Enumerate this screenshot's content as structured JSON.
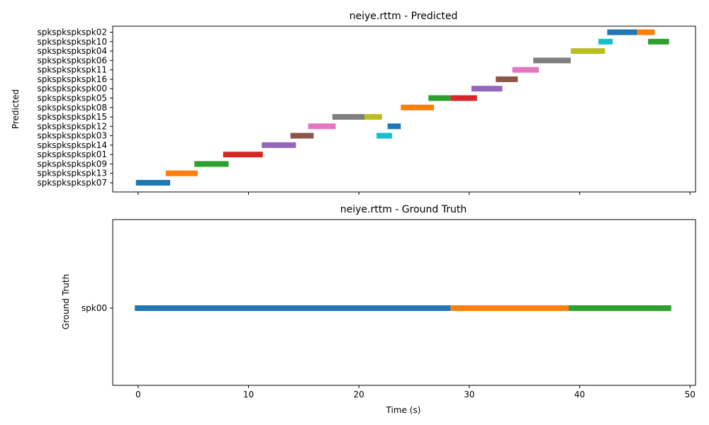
{
  "chart_data": [
    {
      "type": "timeline",
      "title": "neiye.rttm - Predicted",
      "xlabel": "",
      "ylabel": "Predicted",
      "xlim": [
        -2.3,
        50.5
      ],
      "grid": false,
      "speakers": [
        "spkspkspkspk07",
        "spkspkspkspk13",
        "spkspkspkspk09",
        "spkspkspkspk01",
        "spkspkspkspk14",
        "spkspkspkspk03",
        "spkspkspkspk12",
        "spkspkspkspk15",
        "spkspkspkspk08",
        "spkspkspkspk05",
        "spkspkspkspk00",
        "spkspkspkspk16",
        "spkspkspkspk11",
        "spkspkspkspk06",
        "spkspkspkspk04",
        "spkspkspkspk10",
        "spkspkspkspk02"
      ],
      "segments": [
        {
          "speaker": "spkspkspkspk07",
          "start": -0.2,
          "end": 2.9,
          "color": "#1f77b4"
        },
        {
          "speaker": "spkspkspkspk13",
          "start": 2.5,
          "end": 5.4,
          "color": "#ff7f0e"
        },
        {
          "speaker": "spkspkspkspk09",
          "start": 5.1,
          "end": 8.2,
          "color": "#2ca02c"
        },
        {
          "speaker": "spkspkspkspk01",
          "start": 7.7,
          "end": 11.3,
          "color": "#d62728"
        },
        {
          "speaker": "spkspkspkspk14",
          "start": 11.2,
          "end": 14.3,
          "color": "#9467bd"
        },
        {
          "speaker": "spkspkspkspk03",
          "start": 13.8,
          "end": 15.9,
          "color": "#8c564b"
        },
        {
          "speaker": "spkspkspkspk12",
          "start": 15.4,
          "end": 17.9,
          "color": "#e377c2"
        },
        {
          "speaker": "spkspkspkspk15",
          "start": 17.6,
          "end": 20.5,
          "color": "#7f7f7f"
        },
        {
          "speaker": "spkspkspkspk15",
          "start": 20.5,
          "end": 22.1,
          "color": "#bcbd22"
        },
        {
          "speaker": "spkspkspkspk03",
          "start": 21.6,
          "end": 23.0,
          "color": "#17becf"
        },
        {
          "speaker": "spkspkspkspk12",
          "start": 22.6,
          "end": 23.8,
          "color": "#1f77b4"
        },
        {
          "speaker": "spkspkspkspk08",
          "start": 23.8,
          "end": 26.8,
          "color": "#ff7f0e"
        },
        {
          "speaker": "spkspkspkspk05",
          "start": 26.3,
          "end": 28.3,
          "color": "#2ca02c"
        },
        {
          "speaker": "spkspkspkspk05",
          "start": 28.3,
          "end": 30.7,
          "color": "#d62728"
        },
        {
          "speaker": "spkspkspkspk00",
          "start": 30.2,
          "end": 33.0,
          "color": "#9467bd"
        },
        {
          "speaker": "spkspkspkspk16",
          "start": 32.4,
          "end": 34.4,
          "color": "#8c564b"
        },
        {
          "speaker": "spkspkspkspk11",
          "start": 33.9,
          "end": 36.3,
          "color": "#e377c2"
        },
        {
          "speaker": "spkspkspkspk06",
          "start": 35.8,
          "end": 39.2,
          "color": "#7f7f7f"
        },
        {
          "speaker": "spkspkspkspk04",
          "start": 39.2,
          "end": 42.3,
          "color": "#bcbd22"
        },
        {
          "speaker": "spkspkspkspk10",
          "start": 41.7,
          "end": 43.0,
          "color": "#17becf"
        },
        {
          "speaker": "spkspkspkspk02",
          "start": 42.5,
          "end": 45.2,
          "color": "#1f77b4"
        },
        {
          "speaker": "spkspkspkspk02",
          "start": 45.2,
          "end": 46.8,
          "color": "#ff7f0e"
        },
        {
          "speaker": "spkspkspkspk10",
          "start": 46.2,
          "end": 48.1,
          "color": "#2ca02c"
        }
      ],
      "xticks": [
        0,
        10,
        20,
        30,
        40,
        50
      ],
      "show_xtick_labels": false
    },
    {
      "type": "timeline",
      "title": "neiye.rttm - Ground Truth",
      "xlabel": "Time (s)",
      "ylabel": "Ground Truth",
      "xlim": [
        -2.3,
        50.5
      ],
      "grid": false,
      "speakers": [
        "spk00"
      ],
      "segments": [
        {
          "speaker": "spk00",
          "start": -0.3,
          "end": 28.3,
          "color": "#1f77b4"
        },
        {
          "speaker": "spk00",
          "start": 28.3,
          "end": 39.0,
          "color": "#ff7f0e"
        },
        {
          "speaker": "spk00",
          "start": 39.0,
          "end": 48.3,
          "color": "#2ca02c"
        }
      ],
      "xticks": [
        0,
        10,
        20,
        30,
        40,
        50
      ],
      "show_xtick_labels": true
    }
  ]
}
